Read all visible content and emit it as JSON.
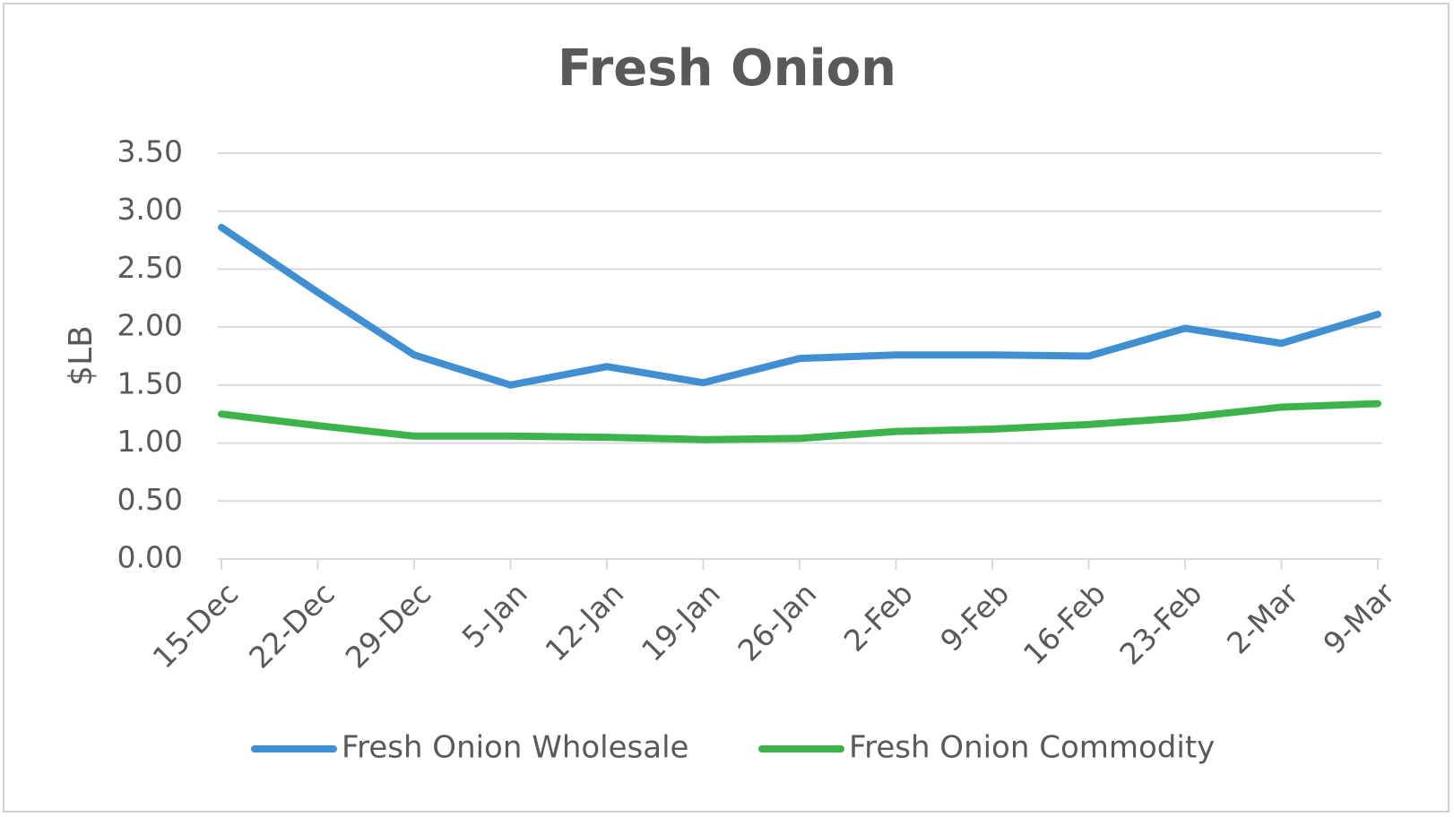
{
  "chart_data": {
    "type": "line",
    "title": "Fresh Onion",
    "y_label": "$LB",
    "categories": [
      "15-Dec",
      "22-Dec",
      "29-Dec",
      "5-Jan",
      "12-Jan",
      "19-Jan",
      "26-Jan",
      "2-Feb",
      "9-Feb",
      "16-Feb",
      "23-Feb",
      "2-Mar",
      "9-Mar"
    ],
    "series": [
      {
        "name": "Fresh Onion Wholesale",
        "color": "#3f8fd2",
        "values": [
          2.86,
          2.3,
          1.76,
          1.5,
          1.66,
          1.52,
          1.73,
          1.76,
          1.76,
          1.75,
          1.99,
          1.86,
          2.11
        ]
      },
      {
        "name": "Fresh Onion Commodity",
        "color": "#3cb44b",
        "values": [
          1.25,
          1.15,
          1.06,
          1.06,
          1.05,
          1.03,
          1.04,
          1.1,
          1.12,
          1.16,
          1.22,
          1.31,
          1.34
        ]
      }
    ],
    "ylim": [
      0,
      3.5
    ],
    "yticks": [
      {
        "value": 0,
        "label": "0.00"
      },
      {
        "value": 0.5,
        "label": "0.50"
      },
      {
        "value": 1,
        "label": "1.00"
      },
      {
        "value": 1.5,
        "label": "1.50"
      },
      {
        "value": 2,
        "label": "2.00"
      },
      {
        "value": 2.5,
        "label": "2.50"
      },
      {
        "value": 3,
        "label": "3.00"
      },
      {
        "value": 3.5,
        "label": "3.50"
      }
    ],
    "grid": true,
    "legend": "bottom"
  }
}
